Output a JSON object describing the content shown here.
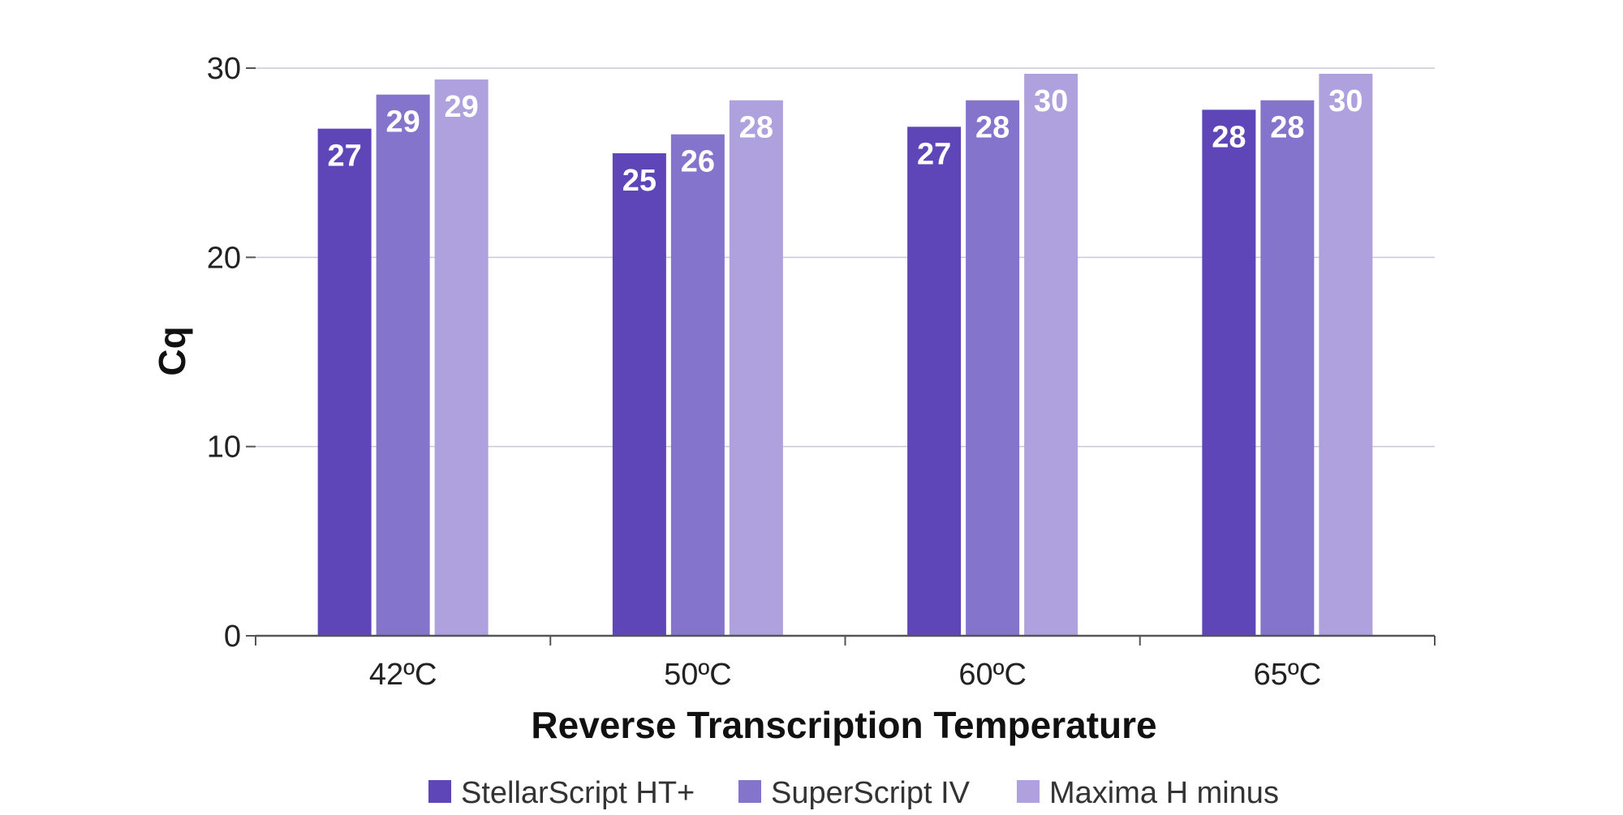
{
  "chart_data": {
    "type": "bar",
    "title": "",
    "xlabel": "Reverse Transcription Temperature",
    "ylabel": "Cq",
    "categories": [
      "42ºC",
      "50ºC",
      "60ºC",
      "65ºC"
    ],
    "ylim": [
      0,
      30
    ],
    "yticks": [
      "0",
      "10",
      "20",
      "30"
    ],
    "grid": true,
    "legend": "bottom",
    "series": [
      {
        "name": "StellarScript HT+",
        "color": "#5e45b8",
        "values": [
          26.8,
          25.5,
          26.9,
          27.8
        ],
        "labels": [
          "27",
          "25",
          "27",
          "28"
        ]
      },
      {
        "name": "SuperScript IV",
        "color": "#8474cc",
        "values": [
          28.6,
          26.5,
          28.3,
          28.3
        ],
        "labels": [
          "29",
          "26",
          "28",
          "28"
        ]
      },
      {
        "name": "Maxima H minus",
        "color": "#afa1de",
        "values": [
          29.4,
          28.3,
          29.7,
          29.7
        ],
        "labels": [
          "29",
          "28",
          "30",
          "30"
        ]
      }
    ]
  }
}
